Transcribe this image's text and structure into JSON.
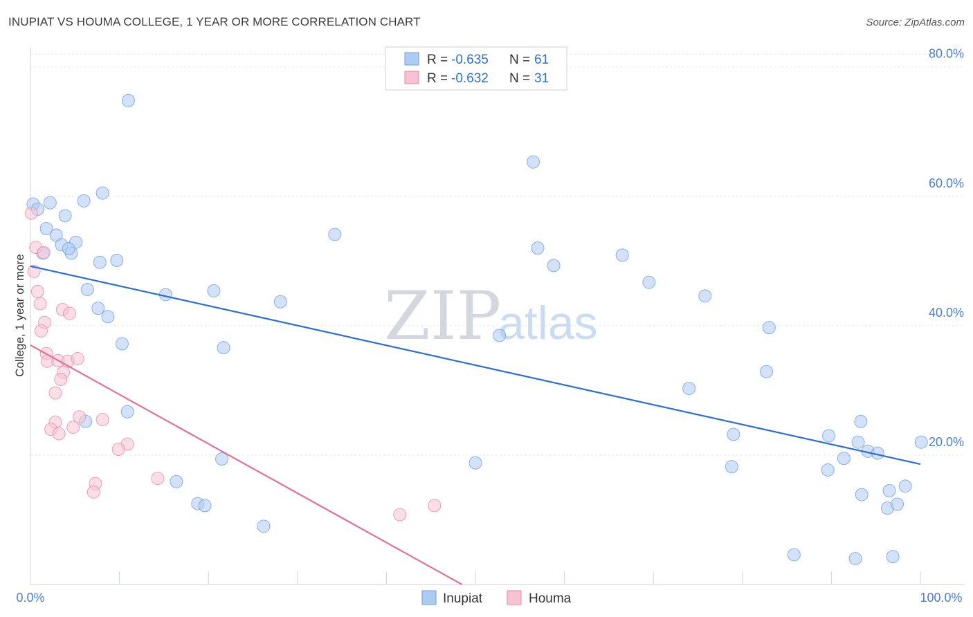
{
  "title": "INUPIAT VS HOUMA COLLEGE, 1 YEAR OR MORE CORRELATION CHART",
  "source": "Source: ZipAtlas.com",
  "watermark": {
    "zip": "ZIP",
    "atlas": "atlas"
  },
  "legend": {
    "r_label": "R =",
    "n_label": "N =",
    "rows": [
      {
        "r": "-0.635",
        "n": "61"
      },
      {
        "r": "-0.632",
        "n": "31"
      }
    ]
  },
  "colors": {
    "inupiat_fill": "#aecbf2",
    "inupiat_stroke": "#6e9fe0",
    "inupiat_line": "#2a6fd0",
    "houma_fill": "#f7c3d2",
    "houma_stroke": "#e88aa6",
    "houma_line": "#e0709a"
  },
  "chart_data": {
    "type": "scatter",
    "title": "INUPIAT VS HOUMA COLLEGE, 1 YEAR OR MORE CORRELATION CHART",
    "xlabel": "",
    "ylabel": "College, 1 year or more",
    "xlim": [
      0,
      100
    ],
    "ylim": [
      0,
      82
    ],
    "x_tick_labels": [
      "0.0%",
      "100.0%"
    ],
    "y_ticks": [
      20,
      40,
      60,
      80
    ],
    "y_tick_labels": [
      "20.0%",
      "40.0%",
      "60.0%",
      "80.0%"
    ],
    "series": [
      {
        "name": "Inupiat",
        "points": [
          [
            0.3,
            58.8
          ],
          [
            0.8,
            58.0
          ],
          [
            2.2,
            59.0
          ],
          [
            6.0,
            59.3
          ],
          [
            8.1,
            60.5
          ],
          [
            11.0,
            74.8
          ],
          [
            3.9,
            57.0
          ],
          [
            1.8,
            55.0
          ],
          [
            2.9,
            54.0
          ],
          [
            3.5,
            52.5
          ],
          [
            5.1,
            52.9
          ],
          [
            4.6,
            51.2
          ],
          [
            4.3,
            51.9
          ],
          [
            1.4,
            51.2
          ],
          [
            7.8,
            49.8
          ],
          [
            9.7,
            50.1
          ],
          [
            6.4,
            45.6
          ],
          [
            15.2,
            44.8
          ],
          [
            20.6,
            45.4
          ],
          [
            28.1,
            43.7
          ],
          [
            7.6,
            42.7
          ],
          [
            8.7,
            41.4
          ],
          [
            10.3,
            37.2
          ],
          [
            21.7,
            36.6
          ],
          [
            34.2,
            54.1
          ],
          [
            56.5,
            65.3
          ],
          [
            57.0,
            52.0
          ],
          [
            58.8,
            49.3
          ],
          [
            66.5,
            50.9
          ],
          [
            69.5,
            46.7
          ],
          [
            75.8,
            44.6
          ],
          [
            52.7,
            38.5
          ],
          [
            83.0,
            39.7
          ],
          [
            74.0,
            30.3
          ],
          [
            82.7,
            32.9
          ],
          [
            10.9,
            26.7
          ],
          [
            6.2,
            25.2
          ],
          [
            21.5,
            19.4
          ],
          [
            16.4,
            15.9
          ],
          [
            18.8,
            12.5
          ],
          [
            19.6,
            12.2
          ],
          [
            26.2,
            9.0
          ],
          [
            50.0,
            18.8
          ],
          [
            79.0,
            23.2
          ],
          [
            78.8,
            18.2
          ],
          [
            89.7,
            23.0
          ],
          [
            89.6,
            17.7
          ],
          [
            91.4,
            19.5
          ],
          [
            93.0,
            22.0
          ],
          [
            93.4,
            13.9
          ],
          [
            93.3,
            25.2
          ],
          [
            94.1,
            20.6
          ],
          [
            95.2,
            20.3
          ],
          [
            96.5,
            14.5
          ],
          [
            96.3,
            11.8
          ],
          [
            97.4,
            12.4
          ],
          [
            98.3,
            15.2
          ],
          [
            100.1,
            22.0
          ],
          [
            85.8,
            4.6
          ],
          [
            92.7,
            4.0
          ],
          [
            96.9,
            4.3
          ]
        ],
        "trend": {
          "x": [
            0,
            100
          ],
          "y": [
            49.2,
            18.6
          ]
        }
      },
      {
        "name": "Houma",
        "points": [
          [
            0.1,
            57.4
          ],
          [
            0.6,
            52.1
          ],
          [
            1.5,
            51.3
          ],
          [
            0.4,
            48.4
          ],
          [
            0.8,
            45.3
          ],
          [
            1.1,
            43.4
          ],
          [
            1.6,
            40.5
          ],
          [
            1.2,
            39.2
          ],
          [
            3.6,
            42.5
          ],
          [
            4.4,
            41.9
          ],
          [
            1.8,
            35.7
          ],
          [
            1.9,
            34.5
          ],
          [
            3.1,
            34.6
          ],
          [
            4.2,
            34.5
          ],
          [
            5.3,
            34.9
          ],
          [
            3.7,
            32.8
          ],
          [
            3.4,
            31.7
          ],
          [
            2.8,
            29.6
          ],
          [
            5.5,
            25.9
          ],
          [
            8.1,
            25.5
          ],
          [
            2.8,
            25.1
          ],
          [
            2.3,
            24.0
          ],
          [
            4.8,
            24.3
          ],
          [
            3.2,
            23.3
          ],
          [
            10.9,
            21.7
          ],
          [
            9.9,
            20.9
          ],
          [
            14.3,
            16.4
          ],
          [
            7.3,
            15.6
          ],
          [
            7.1,
            14.3
          ],
          [
            41.5,
            10.8
          ],
          [
            45.4,
            12.2
          ]
        ],
        "trend": {
          "x": [
            0,
            48.5
          ],
          "y": [
            37.0,
            0
          ]
        }
      }
    ],
    "legend_position": "top-center"
  }
}
